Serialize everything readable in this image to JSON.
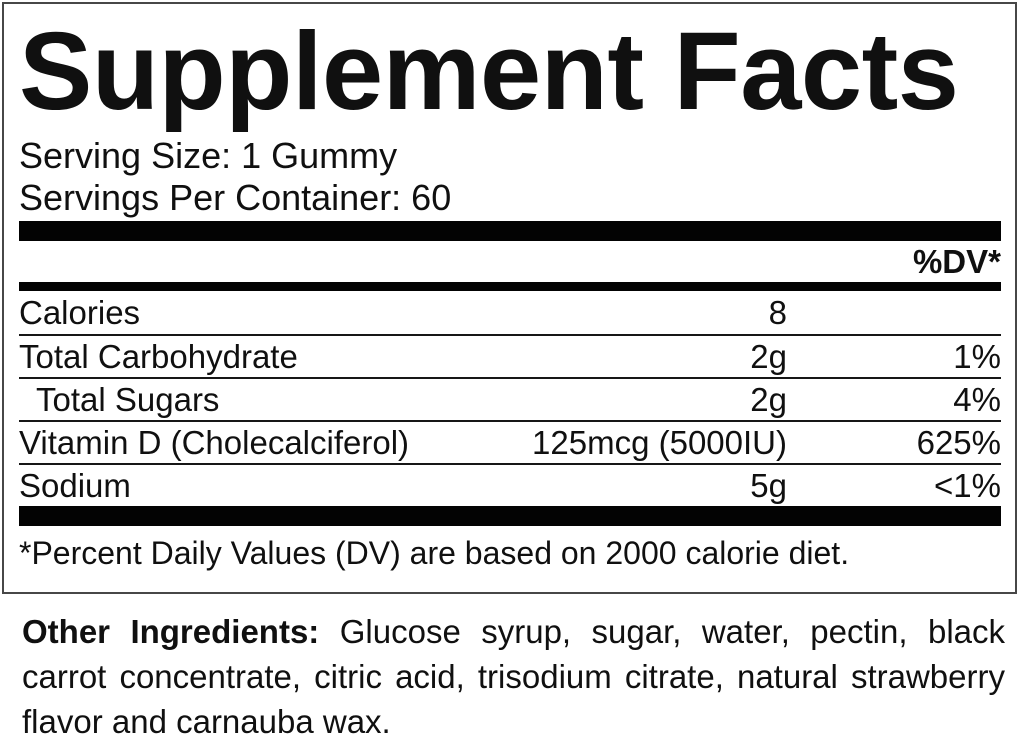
{
  "panel": {
    "title": "Supplement Facts",
    "serving_size": "Serving Size: 1 Gummy",
    "servings_per_container": "Servings Per Container: 60",
    "dv_header": "%DV*",
    "rows": [
      {
        "name": "Calories",
        "amount": "8",
        "dv": "",
        "indent": false
      },
      {
        "name": "Total Carbohydrate",
        "amount": "2g",
        "dv": "1%",
        "indent": false
      },
      {
        "name": "Total Sugars",
        "amount": "2g",
        "dv": "4%",
        "indent": true
      },
      {
        "name": "Vitamin D (Cholecalciferol)",
        "amount": "125mcg (5000IU)",
        "dv": "625%",
        "indent": false
      },
      {
        "name": "Sodium",
        "amount": "5g",
        "dv": "<1%",
        "indent": false
      }
    ],
    "footnote": "*Percent Daily Values (DV) are based on 2000 calorie diet."
  },
  "other_ingredients": {
    "label": "Other Ingredients:",
    "text": "Glucose syrup, sugar, water, pectin, black carrot concentrate, citric acid, trisodium citrate, natural strawberry flavor and carnauba wax."
  },
  "colors": {
    "ink": "#101010",
    "bar": "#030303",
    "border": "#474747",
    "rule": "#161616"
  }
}
